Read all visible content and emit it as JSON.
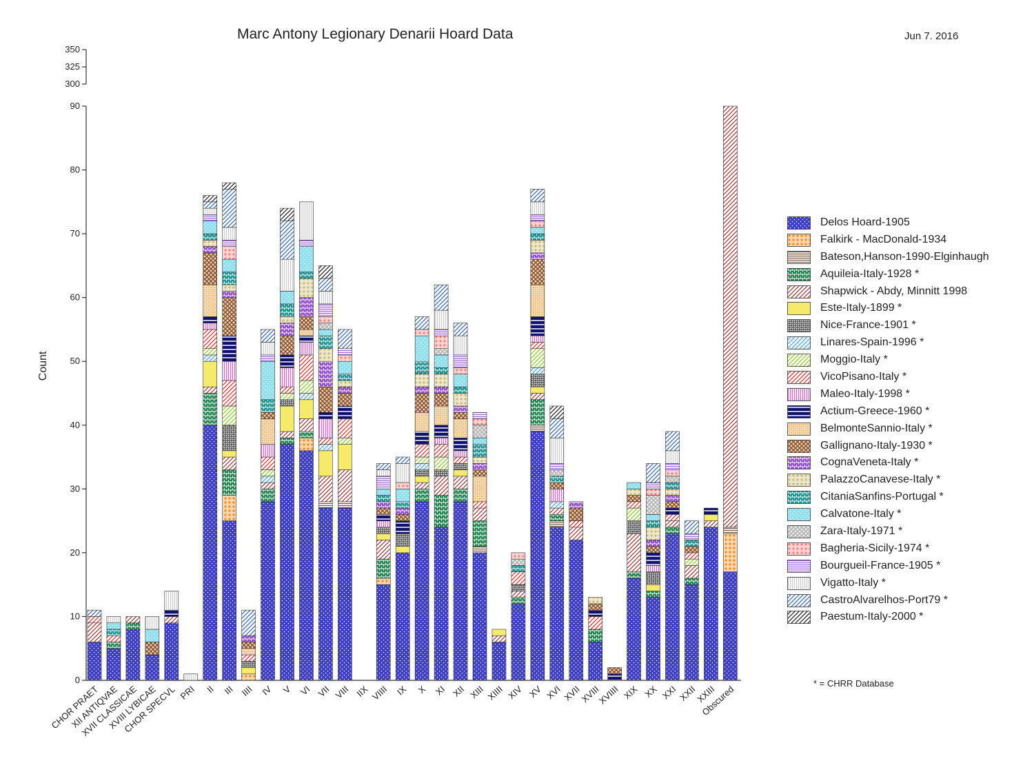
{
  "title": "Marc Antony Legionary Denarii Hoard Data",
  "date": "Jun 7. 2016",
  "footnote": "* = CHRR Database",
  "chart_data": {
    "type": "bar",
    "stacked": true,
    "title": "Marc Antony Legionary Denarii Hoard Data",
    "ylabel": "Count",
    "xlabel": "",
    "ylim_lower": [
      0,
      90
    ],
    "ylim_upper": [
      300,
      350
    ],
    "yticks_lower": [
      0,
      10,
      20,
      30,
      40,
      50,
      60,
      70,
      80,
      90
    ],
    "yticks_upper": [
      300,
      325,
      350
    ],
    "legend_position": "right",
    "categories": [
      "CHOR PRAET",
      "XII ANTIQVAE",
      "XVII CLASSICAE",
      "XVIII LYBICAE",
      "CHOR SPECVL",
      "PRI",
      "II",
      "III",
      "IIII",
      "IV",
      "V",
      "VI",
      "VII",
      "VIII",
      "IIX",
      "VIIII",
      "IX",
      "X",
      "XI",
      "XII",
      "XIII",
      "XIIII",
      "XIV",
      "XV",
      "XVI",
      "XVII",
      "XVIII",
      "XVIIII",
      "XIX",
      "XX",
      "XXI",
      "XXII",
      "XXIII",
      "Obscured"
    ],
    "series": [
      {
        "name": "Delos Hoard-1905",
        "color": "#3d3dc8",
        "pattern": "dots",
        "values": [
          6,
          5,
          8,
          4,
          9,
          0,
          40,
          25,
          0,
          28,
          37,
          36,
          27,
          27,
          0,
          15,
          20,
          28,
          24,
          28,
          20,
          6,
          12,
          39,
          24,
          22,
          6,
          0,
          16,
          13,
          23,
          15,
          24,
          17
        ]
      },
      {
        "name": "Falkirk - MacDonald-1934",
        "color": "#ee8a1a",
        "pattern": "bigdots",
        "values": [
          0,
          0,
          0,
          0,
          0,
          0,
          0,
          4,
          1,
          0,
          0,
          2,
          0,
          0,
          0,
          1,
          0,
          0,
          0,
          0,
          0,
          0,
          0,
          0,
          0,
          0,
          0,
          0,
          0,
          0,
          0,
          0,
          0,
          6
        ]
      },
      {
        "name": "Bateson,Hanson-1990-Elginhaugh",
        "color": "#7a5a40",
        "pattern": "hlines",
        "values": [
          0,
          0,
          0,
          0,
          0,
          0,
          0,
          0,
          0,
          0,
          0,
          0,
          1,
          1,
          0,
          0,
          0,
          0,
          0,
          0,
          1,
          0,
          0,
          1,
          1,
          0,
          0,
          0,
          0,
          0,
          0,
          0,
          0,
          1
        ]
      },
      {
        "name": "Aquileia-Italy-1928 *",
        "color": "#1e8a4e",
        "pattern": "brick",
        "values": [
          0,
          1,
          1,
          0,
          0,
          0,
          5,
          4,
          0,
          2,
          1,
          1,
          0,
          0,
          0,
          3,
          0,
          2,
          5,
          2,
          4,
          0,
          1,
          4,
          1,
          0,
          2,
          0,
          1,
          1,
          1,
          1,
          0,
          0
        ]
      },
      {
        "name": "Shapwick - Abdy, Minnitt 1998",
        "color": "#a03a3a",
        "pattern": "diag",
        "values": [
          3,
          0,
          1,
          0,
          1,
          0,
          1,
          2,
          0,
          1,
          1,
          2,
          4,
          5,
          0,
          3,
          0,
          1,
          3,
          2,
          2,
          1,
          1,
          1,
          1,
          2,
          0,
          0,
          6,
          0,
          1,
          2,
          1,
          66
        ]
      },
      {
        "name": "Este-Italy-1899 *",
        "color": "#f2e23a",
        "pattern": "solid",
        "values": [
          0,
          0,
          0,
          0,
          0,
          0,
          4,
          1,
          1,
          0,
          4,
          3,
          4,
          4,
          0,
          1,
          1,
          1,
          0,
          1,
          0,
          1,
          0,
          1,
          0,
          0,
          0,
          0,
          0,
          1,
          0,
          0,
          1,
          0
        ]
      },
      {
        "name": "Nice-France-1901 *",
        "color": "#333333",
        "pattern": "grid",
        "values": [
          0,
          0,
          0,
          0,
          0,
          0,
          0,
          4,
          1,
          0,
          1,
          0,
          0,
          0,
          0,
          1,
          2,
          1,
          1,
          1,
          0,
          0,
          1,
          2,
          0,
          0,
          0,
          0,
          2,
          2,
          0,
          0,
          0,
          0
        ]
      },
      {
        "name": "Linares-Spain-1996 *",
        "color": "#58a8e8",
        "pattern": "diag2",
        "values": [
          0,
          0,
          0,
          0,
          0,
          0,
          1,
          0,
          0,
          1,
          0,
          1,
          1,
          0,
          0,
          0,
          0,
          1,
          0,
          0,
          0,
          0,
          0,
          1,
          1,
          0,
          0,
          0,
          0,
          0,
          0,
          0,
          0,
          0
        ]
      },
      {
        "name": "Moggio-Italy *",
        "color": "#8ed020",
        "pattern": "diag",
        "values": [
          0,
          0,
          0,
          0,
          0,
          0,
          1,
          3,
          0,
          1,
          1,
          2,
          0,
          1,
          0,
          0,
          0,
          1,
          2,
          0,
          0,
          0,
          0,
          3,
          0,
          0,
          0,
          0,
          2,
          0,
          0,
          1,
          0,
          0
        ]
      },
      {
        "name": "VicoPisano-Italy *",
        "color": "#e03030",
        "pattern": "diag",
        "values": [
          1,
          1,
          0,
          0,
          0,
          0,
          3,
          4,
          1,
          2,
          1,
          4,
          1,
          3,
          0,
          0,
          0,
          2,
          2,
          1,
          1,
          0,
          2,
          1,
          0,
          1,
          2,
          0,
          1,
          0,
          1,
          1,
          0,
          0
        ]
      },
      {
        "name": "Maleo-Italy-1998 *",
        "color": "#e060c8",
        "pattern": "vlines",
        "values": [
          0,
          0,
          0,
          0,
          0,
          0,
          1,
          3,
          0,
          2,
          3,
          2,
          3,
          0,
          0,
          1,
          0,
          0,
          1,
          1,
          0,
          0,
          0,
          1,
          2,
          0,
          0,
          0,
          0,
          1,
          0,
          0,
          0,
          0
        ]
      },
      {
        "name": "Actium-Greece-1960 *",
        "color": "#101070",
        "pattern": "hbars",
        "values": [
          0,
          0,
          0,
          0,
          1,
          0,
          1,
          4,
          0,
          0,
          2,
          1,
          1,
          2,
          0,
          1,
          2,
          2,
          2,
          2,
          0,
          0,
          0,
          3,
          0,
          0,
          1,
          1,
          0,
          2,
          1,
          0,
          1,
          0
        ]
      },
      {
        "name": "BelmonteSannio-Italy *",
        "color": "#f0b060",
        "pattern": "grid",
        "values": [
          0,
          0,
          0,
          0,
          0,
          0,
          5,
          0,
          1,
          4,
          0,
          1,
          0,
          0,
          0,
          0,
          0,
          3,
          3,
          3,
          4,
          0,
          0,
          5,
          0,
          0,
          0,
          0,
          0,
          0,
          0,
          0,
          0,
          0
        ]
      },
      {
        "name": "Gallignano-Italy-1930 *",
        "color": "#8a4a1a",
        "pattern": "cross",
        "values": [
          0,
          0,
          0,
          2,
          0,
          0,
          5,
          6,
          1,
          1,
          3,
          2,
          4,
          2,
          0,
          1,
          1,
          3,
          2,
          1,
          1,
          0,
          0,
          4,
          1,
          2,
          1,
          1,
          1,
          1,
          1,
          1,
          0,
          0
        ]
      },
      {
        "name": "CognaVeneta-Italy *",
        "color": "#9a4ad8",
        "pattern": "brick",
        "values": [
          0,
          0,
          0,
          0,
          0,
          0,
          1,
          1,
          1,
          0,
          2,
          3,
          4,
          1,
          0,
          1,
          1,
          1,
          1,
          1,
          1,
          0,
          0,
          1,
          0,
          1,
          0,
          0,
          0,
          1,
          1,
          0,
          0,
          0
        ]
      },
      {
        "name": "PalazzoCanavese-Italy *",
        "color": "#c8b870",
        "pattern": "bigdots",
        "values": [
          0,
          0,
          0,
          0,
          0,
          0,
          1,
          1,
          0,
          0,
          1,
          3,
          2,
          1,
          0,
          0,
          0,
          2,
          2,
          2,
          1,
          0,
          0,
          2,
          0,
          0,
          1,
          0,
          1,
          2,
          1,
          0,
          0,
          0
        ]
      },
      {
        "name": "CitaniaSanfins-Portugal *",
        "color": "#189898",
        "pattern": "brick",
        "values": [
          0,
          1,
          0,
          0,
          0,
          0,
          1,
          2,
          0,
          2,
          2,
          1,
          2,
          1,
          0,
          1,
          1,
          2,
          1,
          1,
          2,
          0,
          1,
          1,
          1,
          0,
          0,
          0,
          0,
          1,
          1,
          1,
          0,
          0
        ]
      },
      {
        "name": "Calvatone-Italy *",
        "color": "#90e0f0",
        "pattern": "dots",
        "values": [
          0,
          1,
          0,
          2,
          0,
          0,
          2,
          2,
          0,
          6,
          2,
          4,
          1,
          2,
          0,
          1,
          2,
          4,
          2,
          2,
          1,
          0,
          0,
          1,
          0,
          0,
          0,
          0,
          1,
          1,
          0,
          0,
          0,
          0
        ]
      },
      {
        "name": "Zara-Italy-1971 *",
        "color": "#b0b0b0",
        "pattern": "cross",
        "values": [
          0,
          0,
          0,
          0,
          0,
          0,
          0,
          0,
          0,
          0,
          0,
          0,
          1,
          0,
          0,
          0,
          0,
          0,
          1,
          0,
          2,
          0,
          1,
          0,
          1,
          0,
          0,
          0,
          0,
          3,
          1,
          0,
          0,
          0
        ]
      },
      {
        "name": "Bagheria-Sicily-1974 *",
        "color": "#f08080",
        "pattern": "bigdots",
        "values": [
          0,
          0,
          0,
          0,
          0,
          0,
          0,
          2,
          0,
          0,
          0,
          0,
          1,
          1,
          0,
          0,
          1,
          1,
          2,
          1,
          1,
          0,
          1,
          1,
          0,
          0,
          0,
          0,
          0,
          1,
          1,
          0,
          0,
          0
        ]
      },
      {
        "name": "Bourgueil-France-1905 *",
        "color": "#a060e0",
        "pattern": "hlines",
        "values": [
          0,
          0,
          0,
          0,
          0,
          0,
          1,
          1,
          0,
          1,
          0,
          1,
          2,
          1,
          0,
          2,
          0,
          0,
          1,
          2,
          1,
          0,
          0,
          1,
          1,
          0,
          0,
          0,
          0,
          1,
          1,
          1,
          0,
          0
        ]
      },
      {
        "name": "Vigatto-Italy *",
        "color": "#cccccc",
        "pattern": "vlines",
        "values": [
          0,
          1,
          0,
          2,
          3,
          1,
          1,
          2,
          0,
          2,
          5,
          6,
          2,
          0,
          0,
          1,
          3,
          0,
          3,
          3,
          0,
          0,
          0,
          2,
          4,
          0,
          0,
          0,
          0,
          0,
          2,
          0,
          0,
          0
        ]
      },
      {
        "name": "CastroAlvarelhos-Port79 *",
        "color": "#3a6ab0",
        "pattern": "diag",
        "values": [
          1,
          0,
          0,
          0,
          0,
          0,
          1,
          6,
          4,
          2,
          6,
          0,
          2,
          3,
          0,
          1,
          1,
          2,
          4,
          2,
          0,
          0,
          0,
          2,
          3,
          0,
          0,
          0,
          0,
          3,
          3,
          2,
          0,
          0
        ]
      },
      {
        "name": "Paestum-Italy-2000 *",
        "color": "#222222",
        "pattern": "diag",
        "values": [
          0,
          0,
          0,
          0,
          0,
          0,
          1,
          1,
          0,
          0,
          2,
          0,
          2,
          0,
          0,
          0,
          0,
          0,
          0,
          0,
          0,
          0,
          0,
          0,
          2,
          0,
          0,
          0,
          0,
          0,
          0,
          0,
          0,
          3
        ]
      }
    ]
  },
  "legend_entries": [
    "Delos Hoard-1905",
    "Falkirk - MacDonald-1934",
    "Bateson,Hanson-1990-Elginhaugh",
    "Aquileia-Italy-1928 *",
    "Shapwick - Abdy, Minnitt 1998",
    "Este-Italy-1899 *",
    "Nice-France-1901 *",
    "Linares-Spain-1996 *",
    "Moggio-Italy *",
    "VicoPisano-Italy *",
    "Maleo-Italy-1998 *",
    "Actium-Greece-1960 *",
    "BelmonteSannio-Italy *",
    "Gallignano-Italy-1930 *",
    "CognaVeneta-Italy *",
    "PalazzoCanavese-Italy *",
    "CitaniaSanfins-Portugal *",
    "Calvatone-Italy *",
    "Zara-Italy-1971 *",
    "Bagheria-Sicily-1974 *",
    "Bourgueil-France-1905 *",
    "Vigatto-Italy *",
    "CastroAlvarelhos-Port79 *",
    "Paestum-Italy-2000 *"
  ]
}
